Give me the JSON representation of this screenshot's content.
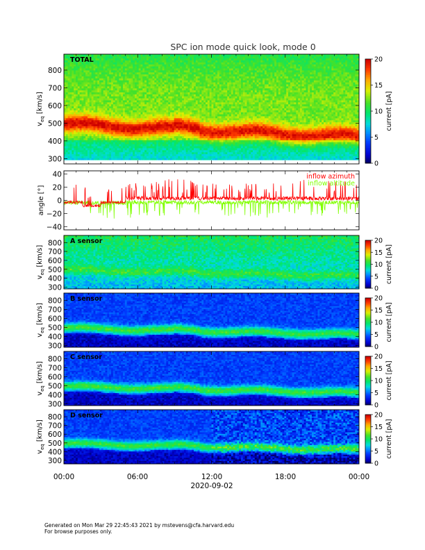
{
  "title": "SPC ion mode quick look, mode 0",
  "xaxis": {
    "tick_labels": [
      "00:00",
      "06:00",
      "12:00",
      "18:00",
      "00:00"
    ],
    "date_label": "2020-09-02"
  },
  "footer": {
    "line1": "Generated on Mon Mar 29 22:45:43 2021 by mstevens@cfa.harvard.edu",
    "line2": "For browse purposes only."
  },
  "colors": {
    "azimuth": "#ff0000",
    "altitude": "#80ff00"
  },
  "chart_data": [
    {
      "type": "heatmap",
      "panel_label": "TOTAL",
      "ylabel_main": "v",
      "ylabel_sub": "eq",
      "ylabel_units": "[km/s]",
      "yticks": [
        "300",
        "400",
        "500",
        "600",
        "700",
        "800"
      ],
      "ylim": [
        270,
        890
      ],
      "xlim": [
        0,
        24
      ],
      "colorbar": {
        "label": "current [pA]",
        "ticks": [
          "0",
          "5",
          "10",
          "15",
          "20"
        ],
        "range": [
          0,
          20
        ]
      }
    },
    {
      "type": "line",
      "ylabel": "angle [°]",
      "yticks": [
        "−40",
        "−20",
        "0",
        "20",
        "40"
      ],
      "ylim": [
        -45,
        45
      ],
      "xlim": [
        0,
        24
      ],
      "series": [
        {
          "name": "inflow azimuth"
        },
        {
          "name": "inflow altitude"
        }
      ]
    },
    {
      "type": "heatmap",
      "panel_label": "A sensor",
      "ylabel_main": "v",
      "ylabel_sub": "eq",
      "ylabel_units": "[km/s]",
      "yticks": [
        "300",
        "400",
        "500",
        "600",
        "700",
        "800"
      ],
      "ylim": [
        280,
        880
      ],
      "xlim": [
        0,
        24
      ],
      "colorbar": {
        "label": "current [pA]",
        "ticks": [
          "0",
          "5",
          "10",
          "15",
          "20"
        ],
        "range": [
          0,
          20
        ]
      }
    },
    {
      "type": "heatmap",
      "panel_label": "B sensor",
      "ylabel_main": "v",
      "ylabel_sub": "eq",
      "ylabel_units": "[km/s]",
      "yticks": [
        "300",
        "400",
        "500",
        "600",
        "700",
        "800"
      ],
      "ylim": [
        280,
        880
      ],
      "xlim": [
        0,
        24
      ],
      "colorbar": {
        "label": "current [pA]",
        "ticks": [
          "0",
          "5",
          "10",
          "15",
          "20"
        ],
        "range": [
          0,
          20
        ]
      }
    },
    {
      "type": "heatmap",
      "panel_label": "C sensor",
      "ylabel_main": "v",
      "ylabel_sub": "eq",
      "ylabel_units": "[km/s]",
      "yticks": [
        "300",
        "400",
        "500",
        "600",
        "700",
        "800"
      ],
      "ylim": [
        280,
        880
      ],
      "xlim": [
        0,
        24
      ],
      "colorbar": {
        "label": "current [pA]",
        "ticks": [
          "0",
          "5",
          "10",
          "15",
          "20"
        ],
        "range": [
          0,
          20
        ]
      }
    },
    {
      "type": "heatmap",
      "panel_label": "D sensor",
      "ylabel_main": "v",
      "ylabel_sub": "eq",
      "ylabel_units": "[km/s]",
      "yticks": [
        "300",
        "400",
        "500",
        "600",
        "700",
        "800"
      ],
      "ylim": [
        260,
        880
      ],
      "xlim": [
        0,
        24
      ],
      "colorbar": {
        "label": "current [pA]",
        "ticks": [
          "0",
          "5",
          "10",
          "15",
          "20"
        ],
        "range": [
          0,
          20
        ]
      }
    }
  ]
}
